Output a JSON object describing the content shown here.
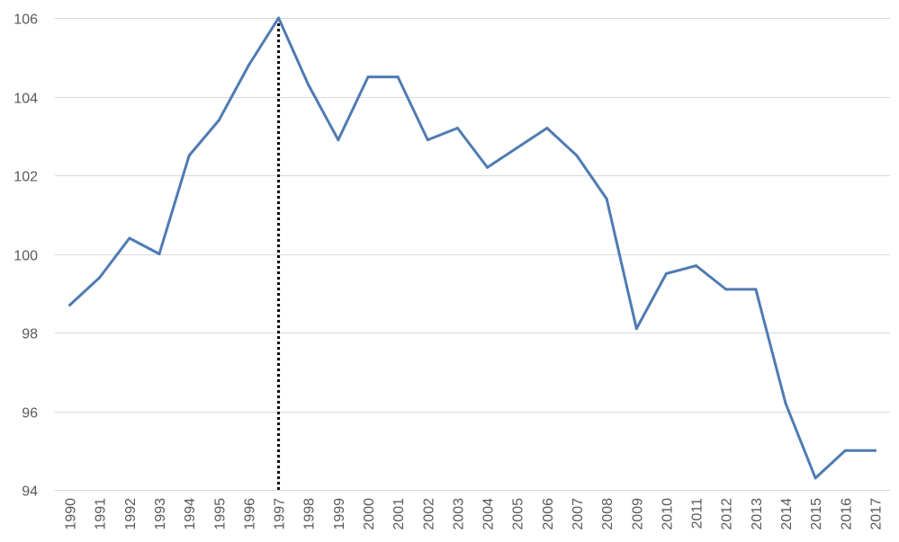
{
  "chart_data": {
    "type": "line",
    "title": "",
    "xlabel": "",
    "ylabel": "",
    "x": [
      "1990",
      "1991",
      "1992",
      "1993",
      "1994",
      "1995",
      "1996",
      "1997",
      "1998",
      "1999",
      "2000",
      "2001",
      "2002",
      "2003",
      "2004",
      "2005",
      "2006",
      "2007",
      "2008",
      "2009",
      "2010",
      "2011",
      "2012",
      "2013",
      "2014",
      "2015",
      "2016",
      "2017"
    ],
    "series": [
      {
        "values": [
          98.7,
          99.4,
          100.4,
          100.0,
          102.5,
          103.4,
          104.8,
          106.0,
          104.3,
          102.9,
          104.5,
          104.5,
          102.9,
          103.2,
          102.2,
          102.7,
          103.2,
          102.5,
          101.4,
          98.1,
          99.5,
          99.7,
          99.1,
          99.1,
          96.2,
          94.3,
          95.0,
          95.0
        ],
        "color": "#4f7bb2"
      }
    ],
    "ylim": [
      94,
      106
    ],
    "yticks": [
      94,
      96,
      98,
      100,
      102,
      104,
      106
    ],
    "grid": true,
    "legend": "none",
    "annotations": [
      {
        "type": "vertical-dotted-line",
        "x": "1997",
        "color": "#000000"
      }
    ]
  }
}
